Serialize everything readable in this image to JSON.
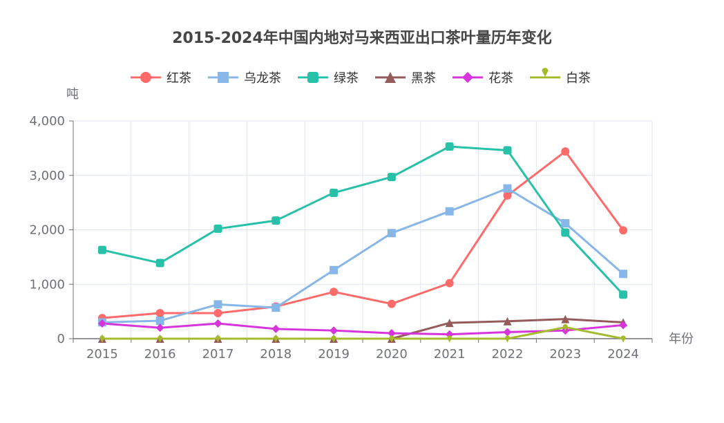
{
  "chart_data": {
    "type": "line",
    "title": "2015-2024年中国内地对马来西亚出口茶叶量历年变化",
    "xlabel": "年份",
    "ylabel": "吨",
    "categories": [
      "2015",
      "2016",
      "2017",
      "2018",
      "2019",
      "2020",
      "2021",
      "2022",
      "2023",
      "2024"
    ],
    "ylim": [
      0,
      4000
    ],
    "yticks": [
      0,
      1000,
      2000,
      3000,
      4000
    ],
    "ytick_labels": [
      "0",
      "1,000",
      "2,000",
      "3,000",
      "4,000"
    ],
    "grid": true,
    "legend_position": "top-center",
    "series": [
      {
        "name": "红茶",
        "color": "#ff6b6b",
        "marker": "circle",
        "values": [
          380,
          470,
          470,
          590,
          860,
          640,
          1020,
          2630,
          3440,
          1990
        ]
      },
      {
        "name": "乌龙茶",
        "color": "#87b6e8",
        "marker": "square",
        "values": [
          300,
          330,
          630,
          570,
          1260,
          1940,
          2340,
          2760,
          2120,
          1190
        ]
      },
      {
        "name": "绿茶",
        "color": "#26c1a8",
        "marker": "roundRect",
        "values": [
          1630,
          1390,
          2020,
          2170,
          2680,
          2970,
          3530,
          3460,
          1950,
          810
        ]
      },
      {
        "name": "黑茶",
        "color": "#955a5a",
        "marker": "triangle",
        "values": [
          0,
          0,
          0,
          0,
          0,
          0,
          290,
          320,
          360,
          300
        ]
      },
      {
        "name": "花茶",
        "color": "#d535db",
        "marker": "diamond",
        "values": [
          280,
          200,
          280,
          180,
          150,
          100,
          80,
          120,
          150,
          250
        ]
      },
      {
        "name": "白茶",
        "color": "#a5bb2b",
        "marker": "pin",
        "values": [
          0,
          0,
          0,
          0,
          0,
          0,
          0,
          0,
          210,
          0
        ]
      }
    ]
  }
}
